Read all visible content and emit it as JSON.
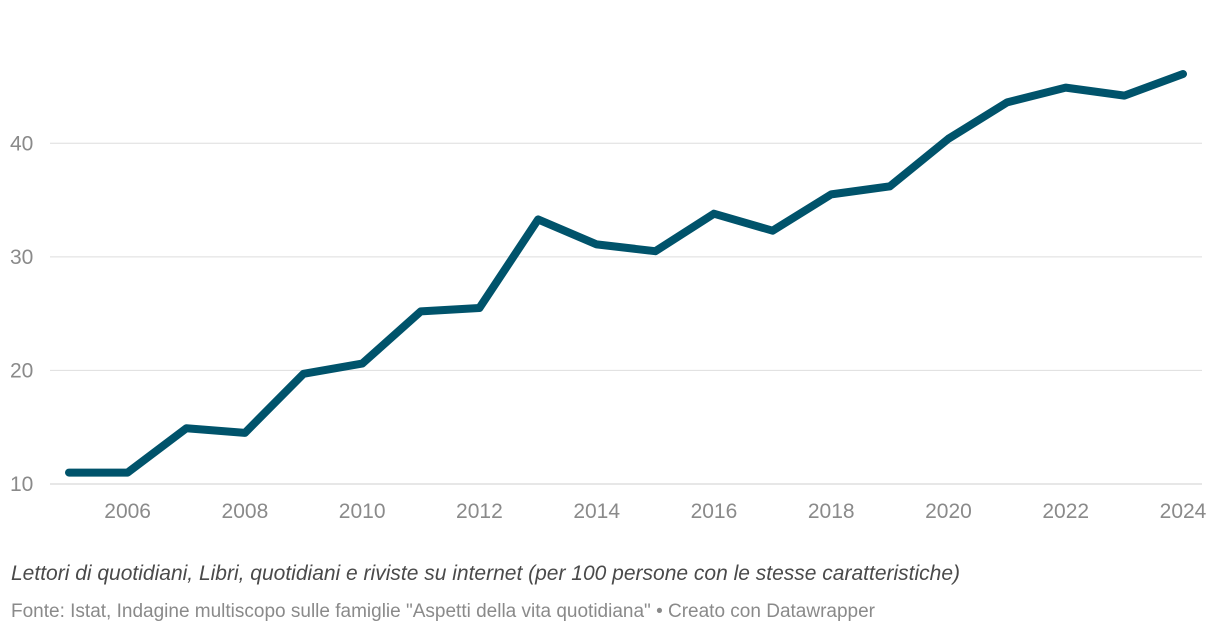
{
  "chart_data": {
    "type": "line",
    "x": [
      2005,
      2006,
      2007,
      2008,
      2009,
      2010,
      2011,
      2012,
      2013,
      2014,
      2015,
      2016,
      2017,
      2018,
      2019,
      2020,
      2021,
      2022,
      2023,
      2024
    ],
    "series": [
      {
        "name": "Lettori di quotidiani, Libri, quotidiani e riviste su internet",
        "values": [
          11.0,
          11.0,
          14.9,
          14.5,
          19.7,
          20.6,
          25.2,
          25.5,
          33.3,
          31.1,
          30.5,
          33.8,
          32.3,
          35.5,
          36.2,
          40.4,
          43.6,
          44.9,
          44.2,
          46.1
        ],
        "color": "#00536b"
      }
    ],
    "ylim": [
      10,
      46.1
    ],
    "yticks": [
      "10",
      "20",
      "30",
      "40"
    ],
    "xticks": [
      "2006",
      "2008",
      "2010",
      "2012",
      "2014",
      "2016",
      "2018",
      "2020",
      "2022",
      "2024"
    ],
    "grid": true,
    "xlabel": "",
    "ylabel": ""
  },
  "caption": "Lettori di quotidiani, Libri, quotidiani e riviste su internet (per 100 persone con le stesse caratteristiche)",
  "source": "Fonte: Istat, Indagine multiscopo sulle famiglie \"Aspetti della vita quotidiana\" • Creato con Datawrapper",
  "colors": {
    "line": "#00536b",
    "grid": "#dedede",
    "tick_text": "#8a8a8a"
  }
}
